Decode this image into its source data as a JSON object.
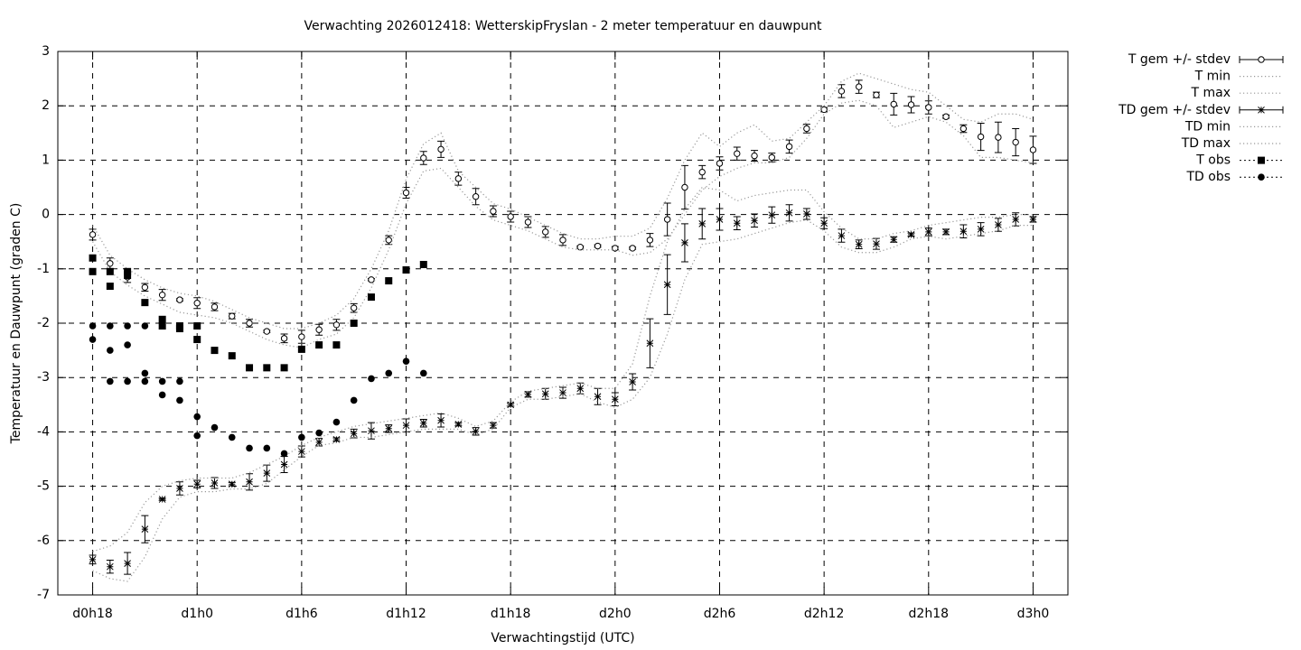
{
  "chart_data": {
    "type": "line",
    "title": "Verwachting 2026012418: WetterskipFryslan - 2 meter temperatuur en dauwpunt",
    "xlabel": "Verwachtingstijd (UTC)",
    "ylabel": "Temperatuur en Dauwpunt (graden C)",
    "xlim": [
      16,
      74
    ],
    "ylim": [
      -7,
      3
    ],
    "xticks": [
      {
        "value": 18,
        "label": "d0h18"
      },
      {
        "value": 24,
        "label": "d1h0"
      },
      {
        "value": 30,
        "label": "d1h6"
      },
      {
        "value": 36,
        "label": "d1h12"
      },
      {
        "value": 42,
        "label": "d1h18"
      },
      {
        "value": 48,
        "label": "d2h0"
      },
      {
        "value": 54,
        "label": "d2h6"
      },
      {
        "value": 60,
        "label": "d2h12"
      },
      {
        "value": 66,
        "label": "d2h18"
      },
      {
        "value": 72,
        "label": "d3h0"
      }
    ],
    "yticks": [
      -7,
      -6,
      -5,
      -4,
      -3,
      -2,
      -1,
      0,
      1,
      2,
      3
    ],
    "grid": true,
    "legend": "outside-right",
    "x": [
      18,
      19,
      20,
      21,
      22,
      23,
      24,
      25,
      26,
      27,
      28,
      29,
      30,
      31,
      32,
      33,
      34,
      35,
      36,
      37,
      38,
      39,
      40,
      41,
      42,
      43,
      44,
      45,
      46,
      47,
      48,
      49,
      50,
      51,
      52,
      53,
      54,
      55,
      56,
      57,
      58,
      59,
      60,
      61,
      62,
      63,
      64,
      65,
      66,
      67,
      68,
      69,
      70,
      71,
      72
    ],
    "series": [
      {
        "name": "T gem +/- stdev",
        "style": "errorbar",
        "marker": "circle",
        "color": "#000000",
        "values": [
          -0.37,
          -0.9,
          -1.15,
          -1.34,
          -1.48,
          -1.57,
          -1.63,
          -1.7,
          -1.87,
          -2.0,
          -2.15,
          -2.28,
          -2.25,
          -2.12,
          -2.03,
          -1.72,
          -1.2,
          -0.47,
          0.4,
          1.04,
          1.2,
          0.66,
          0.33,
          0.06,
          -0.04,
          -0.14,
          -0.32,
          -0.47,
          -0.6,
          -0.58,
          -0.62,
          -0.62,
          -0.47,
          -0.09,
          0.5,
          0.78,
          0.94,
          1.12,
          1.08,
          1.05,
          1.25,
          1.58,
          1.93,
          2.27,
          2.35,
          2.2,
          2.03,
          2.02,
          1.97,
          1.8,
          1.58,
          1.43,
          1.42,
          1.33,
          1.19
        ],
        "errors": [
          0.1,
          0.1,
          0.1,
          0.07,
          0.1,
          0.02,
          0.1,
          0.07,
          0.05,
          0.07,
          0.02,
          0.08,
          0.12,
          0.1,
          0.1,
          0.08,
          0.02,
          0.08,
          0.1,
          0.12,
          0.15,
          0.12,
          0.15,
          0.1,
          0.1,
          0.1,
          0.1,
          0.1,
          0.02,
          0.02,
          0.03,
          0.02,
          0.12,
          0.3,
          0.4,
          0.12,
          0.12,
          0.12,
          0.1,
          0.08,
          0.12,
          0.08,
          0.04,
          0.12,
          0.12,
          0.05,
          0.2,
          0.15,
          0.12,
          0.03,
          0.07,
          0.25,
          0.28,
          0.25,
          0.25
        ]
      },
      {
        "name": "T min",
        "style": "dotted",
        "color": "#999999",
        "values": [
          -0.5,
          -1.05,
          -1.3,
          -1.5,
          -1.65,
          -1.8,
          -1.85,
          -1.9,
          -2.0,
          -2.15,
          -2.3,
          -2.4,
          -2.45,
          -2.3,
          -2.2,
          -1.9,
          -1.35,
          -0.65,
          0.2,
          0.8,
          0.85,
          0.5,
          0.15,
          -0.1,
          -0.2,
          -0.3,
          -0.45,
          -0.6,
          -0.65,
          -0.65,
          -0.65,
          -0.75,
          -0.7,
          -0.45,
          0.0,
          0.45,
          0.7,
          0.85,
          0.95,
          0.95,
          1.05,
          1.4,
          1.85,
          2.05,
          2.1,
          2.0,
          1.6,
          1.7,
          1.8,
          1.7,
          1.45,
          1.05,
          1.05,
          1.0,
          0.95
        ]
      },
      {
        "name": "T max",
        "style": "dotted",
        "color": "#999999",
        "values": [
          -0.2,
          -0.75,
          -1.0,
          -1.2,
          -1.35,
          -1.45,
          -1.5,
          -1.6,
          -1.75,
          -1.9,
          -2.0,
          -2.1,
          -2.1,
          -2.0,
          -1.85,
          -1.55,
          -1.0,
          -0.3,
          0.65,
          1.3,
          1.5,
          0.8,
          0.5,
          0.2,
          0.1,
          -0.05,
          -0.2,
          -0.35,
          -0.45,
          -0.45,
          -0.4,
          -0.4,
          -0.25,
          0.3,
          1.0,
          1.5,
          1.25,
          1.5,
          1.65,
          1.35,
          1.4,
          1.7,
          2.0,
          2.45,
          2.6,
          2.5,
          2.4,
          2.3,
          2.25,
          2.0,
          1.75,
          1.7,
          1.85,
          1.85,
          1.75
        ]
      },
      {
        "name": "TD gem +/- stdev",
        "style": "errorbar",
        "marker": "star",
        "color": "#000000",
        "values": [
          -6.35,
          -6.48,
          -6.42,
          -5.79,
          -5.24,
          -5.04,
          -4.96,
          -4.94,
          -4.96,
          -4.92,
          -4.76,
          -4.6,
          -4.36,
          -4.19,
          -4.14,
          -4.03,
          -3.98,
          -3.94,
          -3.88,
          -3.84,
          -3.79,
          -3.86,
          -3.99,
          -3.88,
          -3.5,
          -3.31,
          -3.3,
          -3.28,
          -3.2,
          -3.35,
          -3.4,
          -3.08,
          -2.37,
          -1.29,
          -0.52,
          -0.17,
          -0.09,
          -0.16,
          -0.11,
          -0.01,
          0.03,
          0.01,
          -0.16,
          -0.39,
          -0.55,
          -0.54,
          -0.46,
          -0.37,
          -0.32,
          -0.32,
          -0.31,
          -0.27,
          -0.19,
          -0.09,
          -0.09
        ],
        "errors": [
          0.08,
          0.12,
          0.2,
          0.25,
          0.02,
          0.12,
          0.07,
          0.1,
          0.03,
          0.15,
          0.15,
          0.15,
          0.1,
          0.07,
          0.03,
          0.08,
          0.15,
          0.07,
          0.12,
          0.07,
          0.12,
          0.03,
          0.07,
          0.05,
          0.03,
          0.05,
          0.1,
          0.1,
          0.1,
          0.15,
          0.12,
          0.15,
          0.45,
          0.55,
          0.35,
          0.28,
          0.2,
          0.12,
          0.12,
          0.15,
          0.15,
          0.1,
          0.1,
          0.12,
          0.08,
          0.1,
          0.05,
          0.03,
          0.07,
          0.05,
          0.12,
          0.12,
          0.12,
          0.12,
          0.05
        ]
      },
      {
        "name": "TD min",
        "style": "dotted",
        "color": "#999999",
        "values": [
          -6.55,
          -6.7,
          -6.75,
          -6.3,
          -5.6,
          -5.2,
          -5.1,
          -5.1,
          -5.05,
          -5.05,
          -4.95,
          -4.7,
          -4.45,
          -4.25,
          -4.2,
          -4.1,
          -4.1,
          -4.05,
          -4.0,
          -3.95,
          -3.95,
          -3.95,
          -4.05,
          -3.95,
          -3.55,
          -3.4,
          -3.4,
          -3.35,
          -3.3,
          -3.45,
          -3.55,
          -3.4,
          -3.0,
          -2.2,
          -1.2,
          -0.55,
          -0.5,
          -0.45,
          -0.35,
          -0.25,
          -0.15,
          -0.1,
          -0.3,
          -0.6,
          -0.7,
          -0.7,
          -0.6,
          -0.45,
          -0.4,
          -0.45,
          -0.4,
          -0.35,
          -0.3,
          -0.2,
          -0.2
        ]
      },
      {
        "name": "TD max",
        "style": "dotted",
        "color": "#999999",
        "values": [
          -6.2,
          -6.1,
          -5.85,
          -5.3,
          -5.0,
          -4.9,
          -4.85,
          -4.85,
          -4.85,
          -4.75,
          -4.6,
          -4.45,
          -4.25,
          -4.1,
          -4.0,
          -3.9,
          -3.85,
          -3.8,
          -3.75,
          -3.7,
          -3.65,
          -3.75,
          -3.9,
          -3.8,
          -3.45,
          -3.25,
          -3.2,
          -3.15,
          -3.1,
          -3.2,
          -3.2,
          -2.75,
          -1.5,
          -0.5,
          0.1,
          0.5,
          0.45,
          0.25,
          0.35,
          0.4,
          0.45,
          0.45,
          0.05,
          -0.25,
          -0.45,
          -0.45,
          -0.35,
          -0.3,
          -0.2,
          -0.15,
          -0.1,
          -0.05,
          -0.05,
          0.0,
          0.0
        ]
      },
      {
        "name": "T obs",
        "style": "points",
        "marker": "square",
        "color": "#000000",
        "x": [
          18,
          18,
          19,
          19,
          20,
          20,
          21,
          22,
          22,
          23,
          23,
          24,
          24,
          25,
          26,
          27,
          28,
          29,
          30,
          31,
          32,
          33,
          34,
          35,
          36,
          37
        ],
        "values": [
          -0.8,
          -1.05,
          -1.05,
          -1.32,
          -1.05,
          -1.12,
          -1.62,
          -1.93,
          -2.05,
          -2.05,
          -2.1,
          -2.05,
          -2.3,
          -2.5,
          -2.6,
          -2.82,
          -2.82,
          -2.82,
          -2.48,
          -2.4,
          -2.4,
          -2.0,
          -1.52,
          -1.22,
          -1.02,
          -0.92
        ]
      },
      {
        "name": "TD obs",
        "style": "points",
        "marker": "dot",
        "color": "#000000",
        "x": [
          18,
          18,
          19,
          19,
          19,
          20,
          20,
          20,
          21,
          21,
          21,
          22,
          22,
          23,
          23,
          24,
          24,
          25,
          26,
          27,
          28,
          29,
          30,
          31,
          32,
          33,
          34,
          35,
          36,
          37
        ],
        "values": [
          -2.05,
          -2.3,
          -2.05,
          -2.5,
          -3.07,
          -2.05,
          -2.4,
          -3.07,
          -2.05,
          -2.92,
          -3.07,
          -3.07,
          -3.32,
          -3.07,
          -3.42,
          -3.72,
          -4.07,
          -3.92,
          -4.1,
          -4.3,
          -4.3,
          -4.4,
          -4.1,
          -4.02,
          -3.82,
          -3.42,
          -3.02,
          -2.92,
          -2.7,
          -2.92
        ]
      }
    ]
  }
}
